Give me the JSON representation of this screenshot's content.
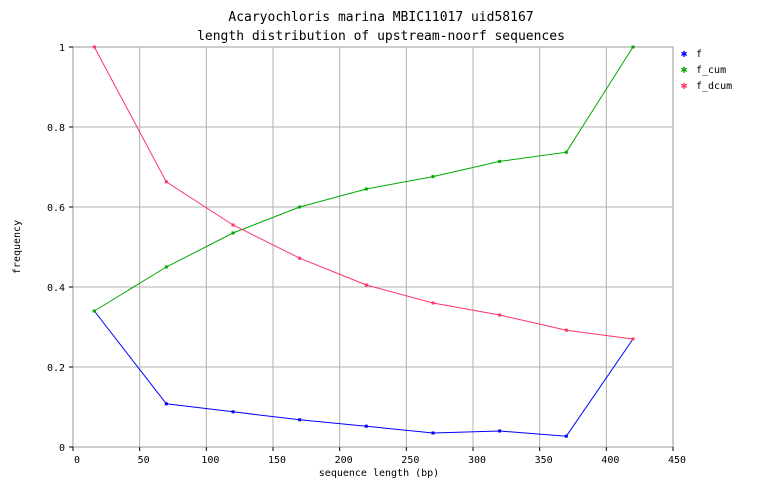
{
  "chart_data": {
    "type": "line",
    "title": "Acaryochloris marina MBIC11017 uid58167",
    "subtitle": "length distribution of upstream-noorf sequences",
    "xlabel": "sequence length (bp)",
    "ylabel": "frequency",
    "xlim": [
      0,
      450
    ],
    "ylim": [
      0,
      1
    ],
    "xticks": [
      0,
      50,
      100,
      150,
      200,
      250,
      300,
      350,
      400,
      450
    ],
    "yticks": [
      0,
      0.2,
      0.4,
      0.6,
      0.8,
      1
    ],
    "xtick_labels": [
      "0",
      "50",
      "100",
      "150",
      "200",
      "250",
      "300",
      "350",
      "400",
      "450"
    ],
    "ytick_labels": [
      "0",
      "0.2",
      "0.4",
      "0.6",
      "0.8",
      "1"
    ],
    "grid": true,
    "legend_position": "top-right",
    "x": [
      16,
      70,
      120,
      170,
      220,
      270,
      320,
      370,
      420
    ],
    "series": [
      {
        "name": "f",
        "color": "#0000ff",
        "values": [
          0.34,
          0.108,
          0.088,
          0.068,
          0.052,
          0.035,
          0.04,
          0.027,
          0.27
        ]
      },
      {
        "name": "f_cum",
        "color": "#00aa00",
        "values": [
          0.34,
          0.45,
          0.535,
          0.6,
          0.645,
          0.676,
          0.714,
          0.737,
          1.0
        ]
      },
      {
        "name": "f_dcum",
        "color": "#ff3366",
        "values": [
          1.0,
          0.663,
          0.555,
          0.472,
          0.405,
          0.36,
          0.33,
          0.292,
          0.27
        ]
      }
    ]
  }
}
